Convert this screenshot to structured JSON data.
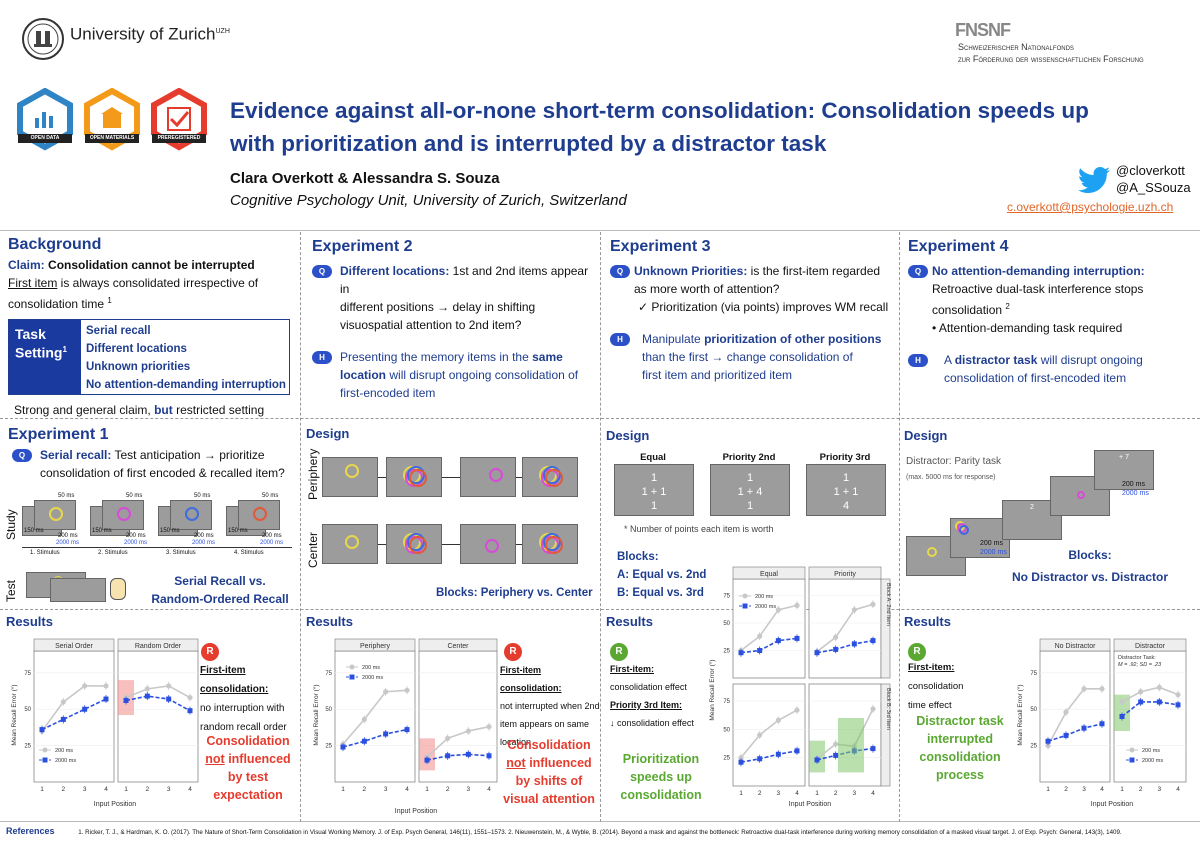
{
  "header": {
    "university_name": "University of Zurich",
    "university_sup": "UZH",
    "snf_logo_letters": "FNSNF",
    "snf_line1": "Schweizerischer Nationalfonds",
    "snf_line2": "zur Förderung der wissenschaftlichen Forschung",
    "badges": [
      {
        "label": "OPEN DATA",
        "color": "#2f84c6",
        "icon": "bar-chart-icon"
      },
      {
        "label": "OPEN MATERIALS",
        "color": "#f39a1b",
        "icon": "box-icon"
      },
      {
        "label": "PREREGISTERED",
        "color": "#e53c2e",
        "icon": "check-icon"
      }
    ],
    "title_line1": "Evidence against all-or-none short-term consolidation: Consolidation speeds up",
    "title_line2": "with prioritization and is interrupted by a distractor task",
    "authors": "Clara Overkott & Alessandra S. Souza",
    "affiliation": "Cognitive Psychology Unit, University of Zurich, Switzerland",
    "twitter1": "@cloverkott",
    "twitter2": "@A_SSouza",
    "email": "c.overkott@psychologie.uzh.ch"
  },
  "background": {
    "heading": "Background",
    "claim_label": "Claim:",
    "claim_text": "Consolidation cannot be interrupted",
    "first_item_u": "First item",
    "first_item_rest": " is always consolidated irrespective of",
    "consolidation_time": "consolidation time",
    "ref1": "1",
    "task_setting_label": "Task Setting",
    "task_setting_sup": "1",
    "task_items": [
      "Serial recall",
      "Different locations",
      "Unknown priorities",
      "No attention-demanding interruption"
    ],
    "footer_a": "Strong and general claim,",
    "footer_but": "but",
    "footer_b": "restricted setting"
  },
  "exp2": {
    "heading": "Experiment 2",
    "q_bold": "Different locations:",
    "q_text1": " 1st and 2nd items appear in",
    "q_text2": "different positions → delay in shifting",
    "q_text3": "visuospatial attention to 2nd item?",
    "h_text1a": "Presenting the memory items in the",
    "h_bold1": "same",
    "h_bold2": "location",
    "h_text2": "will disrupt ongoing consolidation of",
    "h_text3": "first-encoded item"
  },
  "exp3": {
    "heading": "Experiment 3",
    "q_bold": "Unknown Priorities:",
    "q_text1": " is the first-item regarded",
    "q_text2": "as more worth of attention?",
    "q_check": "✓ Prioritization (via points) improves WM recall",
    "h_text1": "Manipulate",
    "h_bold": "prioritization of other positions",
    "h_text2": "than the first → change consolidation of",
    "h_text3": "first item and prioritized item"
  },
  "exp4": {
    "heading": "Experiment 4",
    "q_bold": "No attention-demanding interruption:",
    "q_text1": "Retroactive dual-task interference stops",
    "q_text2": "consolidation",
    "ref2": "2",
    "q_bullet": "• Attention-demanding task required",
    "h_text1": "A",
    "h_bold": "distractor task",
    "h_text2": " will disrupt ongoing",
    "h_text3": "consolidation of first-encoded item"
  },
  "exp1": {
    "heading": "Experiment 1",
    "q_bold": "Serial recall:",
    "q_text1": " Test anticipation → prioritize",
    "q_text2": "consolidation of first encoded & recalled item?",
    "study_label": "Study",
    "test_label": "Test",
    "t50": "50 ms",
    "t150": "150 ms",
    "t200": "200 ms",
    "t2000": "2000 ms",
    "stimuli": [
      "1. Stimulus",
      "2. Stimulus",
      "3. Stimulus",
      "4. Stimulus"
    ],
    "caption1": "Serial Recall vs.",
    "caption2": "Random-Ordered Recall"
  },
  "design2": {
    "heading": "Design",
    "periphery": "Periphery",
    "center": "Center",
    "blocks": "Blocks: Periphery vs. Center"
  },
  "design3": {
    "heading": "Design",
    "conds": [
      "Equal",
      "Priority 2nd",
      "Priority 3rd"
    ],
    "equal_vals": [
      "1",
      "1 + 1",
      "1"
    ],
    "p2_vals": [
      "1",
      "1 + 4",
      "1"
    ],
    "p3_vals": [
      "1",
      "1 + 1",
      "4"
    ],
    "note": "* Number of points each item is worth",
    "blocks_label": "Blocks:",
    "block_a": "A: Equal vs. 2nd",
    "block_b": "B: Equal vs. 3rd"
  },
  "design4": {
    "heading": "Design",
    "distractor": "Distractor: Parity task",
    "max": "(max. 5000 ms for response)",
    "digit2": "2",
    "digit7": "+ 7",
    "t200": "200 ms",
    "t2000": "2000 ms",
    "blocks_label": "Blocks:",
    "blocks": "No Distractor vs. Distractor"
  },
  "results1": {
    "heading": "Results",
    "badge": "R",
    "find_title": "First-item consolidation:",
    "find_text1": "no interruption with",
    "find_text2": "random recall order",
    "concl1": "Consolidation",
    "concl_not": "not",
    "concl2": " influenced",
    "concl3": "by test",
    "concl4": "expectation"
  },
  "results2": {
    "heading": "Results",
    "badge": "R",
    "find_title": "First-item consolidation:",
    "find_text1": "not interrupted when 2nd",
    "find_text2": "item appears on same",
    "find_text3": "location",
    "concl1": "Consolidation",
    "concl_not": "not",
    "concl2": " influenced",
    "concl3": "by shifts of",
    "concl4": "visual attention"
  },
  "results3": {
    "heading": "Results",
    "badge": "R",
    "find_title": "First-item:",
    "find_text1": "consolidation  effect",
    "p3_title": "Priority 3rd Item:",
    "p3_text": "↓ consolidation effect",
    "concl1": "Prioritization",
    "concl2": "speeds up",
    "concl3": "consolidation"
  },
  "results4": {
    "heading": "Results",
    "badge": "R",
    "find_title": "First-item:",
    "find_text1": " consolidation",
    "find_text2": "time effect",
    "concl1": "Distractor task",
    "concl2": "interrupted",
    "concl3": "consolidation",
    "concl4": "process"
  },
  "references": {
    "label": "References",
    "text": "1.  Ricker, T. J., & Hardman, K. O. (2017). The Nature of Short-Term Consolidation in Visual Working Memory. J. of Exp. Psych General, 146(11), 1551–1573.  2. Nieuwenstein, M., & Wyble, B. (2014). Beyond a mask and against the bottleneck: Retroactive dual-task interference during working memory consolidation of a masked visual target. J. of Exp. Psych: General, 143(3), 1409."
  },
  "plot_labels": {
    "ylabel": "Mean Recall Error (°)",
    "xlabel": "Input Position",
    "legend200": "200 ms",
    "legend2000": "2000 ms",
    "yticks": [
      "25",
      "50",
      "75"
    ],
    "xticks": [
      "1",
      "2",
      "3",
      "4"
    ],
    "block_a_strip": "Block A: 2nd Item",
    "block_b_strip": "Block B: 3rd Item",
    "distractor_task": "Distractor Task:",
    "distractor_stats": "M = .92; SD = .23"
  },
  "chart_data": [
    {
      "type": "line",
      "title": "Experiment 1",
      "panels": [
        "Serial Order",
        "Random Order"
      ],
      "xlabel": "Input Position",
      "ylabel": "Mean Recall Error (°)",
      "x": [
        1,
        2,
        3,
        4
      ],
      "ylim": [
        0,
        90
      ],
      "series": [
        {
          "name": "200 ms",
          "color": "#c8c8c8",
          "panel": "Serial Order",
          "values": [
            35,
            55,
            66,
            66
          ]
        },
        {
          "name": "2000 ms",
          "color": "#2b50e0",
          "panel": "Serial Order",
          "values": [
            36,
            43,
            50,
            57
          ]
        },
        {
          "name": "200 ms",
          "color": "#c8c8c8",
          "panel": "Random Order",
          "values": [
            58,
            64,
            66,
            58
          ]
        },
        {
          "name": "2000 ms",
          "color": "#2b50e0",
          "panel": "Random Order",
          "values": [
            56,
            59,
            57,
            49
          ]
        }
      ]
    },
    {
      "type": "line",
      "title": "Experiment 2",
      "panels": [
        "Periphery",
        "Center"
      ],
      "xlabel": "Input Position",
      "ylabel": "Mean Recall Error (°)",
      "x": [
        1,
        2,
        3,
        4
      ],
      "ylim": [
        0,
        90
      ],
      "series": [
        {
          "name": "200 ms",
          "color": "#c8c8c8",
          "panel": "Periphery",
          "values": [
            26,
            43,
            62,
            63
          ]
        },
        {
          "name": "2000 ms",
          "color": "#2b50e0",
          "panel": "Periphery",
          "values": [
            24,
            28,
            33,
            36
          ]
        },
        {
          "name": "200 ms",
          "color": "#c8c8c8",
          "panel": "Center",
          "values": [
            17,
            30,
            35,
            38
          ]
        },
        {
          "name": "2000 ms",
          "color": "#2b50e0",
          "panel": "Center",
          "values": [
            15,
            18,
            19,
            18
          ]
        }
      ]
    },
    {
      "type": "line",
      "title": "Experiment 3",
      "panels": [
        "Equal / Block A",
        "Priority / Block A",
        "Equal / Block B",
        "Priority / Block B"
      ],
      "xlabel": "Input Position",
      "ylabel": "Mean Recall Error (°)",
      "x": [
        1,
        2,
        3,
        4
      ],
      "ylim": [
        0,
        90
      ],
      "series": [
        {
          "name": "200 ms",
          "color": "#c8c8c8",
          "panel": "Equal / Block A",
          "values": [
            25,
            38,
            62,
            66
          ]
        },
        {
          "name": "2000 ms",
          "color": "#2b50e0",
          "panel": "Equal / Block A",
          "values": [
            23,
            25,
            34,
            36
          ]
        },
        {
          "name": "200 ms",
          "color": "#c8c8c8",
          "panel": "Priority / Block A",
          "values": [
            24,
            37,
            62,
            67
          ]
        },
        {
          "name": "2000 ms",
          "color": "#2b50e0",
          "panel": "Priority / Block A",
          "values": [
            23,
            26,
            31,
            34
          ]
        },
        {
          "name": "200 ms",
          "color": "#c8c8c8",
          "panel": "Equal / Block B",
          "values": [
            25,
            45,
            58,
            67
          ]
        },
        {
          "name": "2000 ms",
          "color": "#2b50e0",
          "panel": "Equal / Block B",
          "values": [
            21,
            24,
            28,
            31
          ]
        },
        {
          "name": "200 ms",
          "color": "#c8c8c8",
          "panel": "Priority / Block B",
          "values": [
            24,
            37,
            35,
            68
          ]
        },
        {
          "name": "2000 ms",
          "color": "#2b50e0",
          "panel": "Priority / Block B",
          "values": [
            23,
            27,
            31,
            33
          ]
        }
      ]
    },
    {
      "type": "line",
      "title": "Experiment 4",
      "panels": [
        "No Distractor",
        "Distractor"
      ],
      "xlabel": "Input Position",
      "ylabel": "Mean Recall Error (°)",
      "x": [
        1,
        2,
        3,
        4
      ],
      "ylim": [
        0,
        90
      ],
      "series": [
        {
          "name": "200 ms",
          "color": "#c8c8c8",
          "panel": "No Distractor",
          "values": [
            25,
            48,
            64,
            64
          ]
        },
        {
          "name": "2000 ms",
          "color": "#2b50e0",
          "panel": "No Distractor",
          "values": [
            28,
            32,
            37,
            40
          ]
        },
        {
          "name": "200 ms",
          "color": "#c8c8c8",
          "panel": "Distractor",
          "values": [
            55,
            62,
            65,
            60
          ]
        },
        {
          "name": "2000 ms",
          "color": "#2b50e0",
          "panel": "Distractor",
          "values": [
            45,
            55,
            55,
            53
          ]
        }
      ]
    }
  ]
}
